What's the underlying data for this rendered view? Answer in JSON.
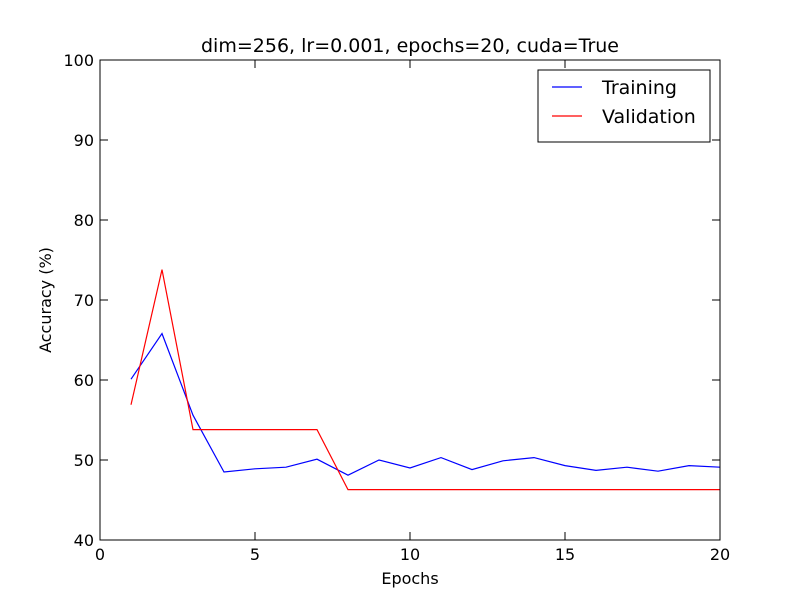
{
  "chart_data": {
    "type": "line",
    "title": "dim=256, lr=0.001, epochs=20, cuda=True",
    "xlabel": "Epochs",
    "ylabel": "Accuracy (%)",
    "xlim": [
      0,
      20
    ],
    "ylim": [
      40,
      100
    ],
    "xticks": [
      "0",
      "5",
      "10",
      "15",
      "20"
    ],
    "yticks": [
      "40",
      "50",
      "60",
      "70",
      "80",
      "90",
      "100"
    ],
    "grid": false,
    "legend_position": "top-right",
    "x": [
      1,
      2,
      3,
      4,
      5,
      6,
      7,
      8,
      9,
      10,
      11,
      12,
      13,
      14,
      15,
      16,
      17,
      18,
      19,
      20
    ],
    "series": [
      {
        "name": "Training",
        "color": "#0000ff",
        "values": [
          60.1,
          65.8,
          55.6,
          48.5,
          48.9,
          49.1,
          50.1,
          48.1,
          50.0,
          49.0,
          50.3,
          48.8,
          49.9,
          50.3,
          49.3,
          48.7,
          49.1,
          48.6,
          49.3,
          49.1
        ]
      },
      {
        "name": "Validation",
        "color": "#ff0000",
        "values": [
          56.9,
          73.8,
          53.8,
          53.8,
          53.8,
          53.8,
          53.8,
          46.3,
          46.3,
          46.3,
          46.3,
          46.3,
          46.3,
          46.3,
          46.3,
          46.3,
          46.3,
          46.3,
          46.3,
          46.3
        ]
      }
    ]
  }
}
